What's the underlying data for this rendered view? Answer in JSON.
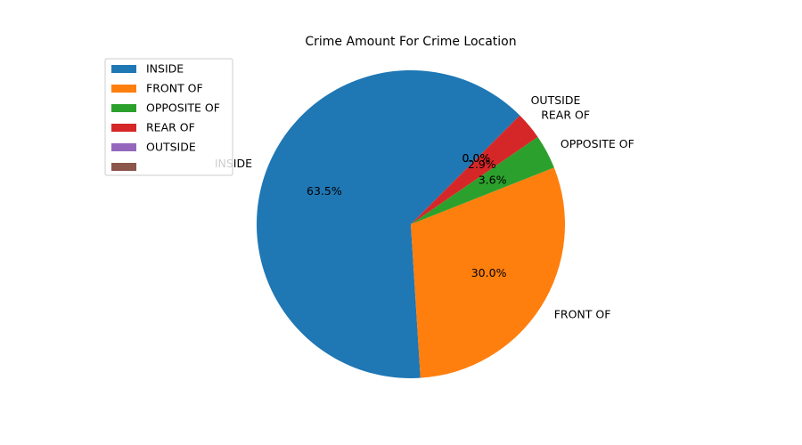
{
  "chart_data": {
    "type": "pie",
    "title": "Crime Amount For Crime Location",
    "start_angle_deg": 45,
    "counterclock": true,
    "slices": [
      {
        "label": "INSIDE",
        "percent": 63.5,
        "pct_text": "63.5%",
        "color": "#1f77b4"
      },
      {
        "label": "FRONT OF",
        "percent": 30.0,
        "pct_text": "30.0%",
        "color": "#ff7f0e"
      },
      {
        "label": "OPPOSITE OF",
        "percent": 3.6,
        "pct_text": "3.6%",
        "color": "#2ca02c"
      },
      {
        "label": "REAR OF",
        "percent": 2.9,
        "pct_text": "2.9%",
        "color": "#d62728"
      },
      {
        "label": "OUTSIDE",
        "percent": 0.0,
        "pct_text": "0.0%",
        "color": "#9467bd"
      },
      {
        "label": "",
        "percent": 0.0,
        "pct_text": "0.0%",
        "color": "#8c564b"
      }
    ],
    "legend": {
      "placement": "upper-left",
      "entries": [
        "INSIDE",
        "FRONT OF",
        "OPPOSITE OF",
        "REAR OF",
        "OUTSIDE",
        ""
      ]
    }
  }
}
